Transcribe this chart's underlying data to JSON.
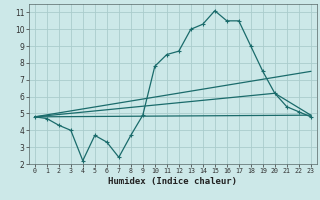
{
  "xlabel": "Humidex (Indice chaleur)",
  "background_color": "#cce8e8",
  "grid_color": "#aacccc",
  "line_color": "#1a6b6b",
  "xlim": [
    -0.5,
    23.5
  ],
  "ylim": [
    2,
    11.5
  ],
  "xticks": [
    0,
    1,
    2,
    3,
    4,
    5,
    6,
    7,
    8,
    9,
    10,
    11,
    12,
    13,
    14,
    15,
    16,
    17,
    18,
    19,
    20,
    21,
    22,
    23
  ],
  "yticks": [
    2,
    3,
    4,
    5,
    6,
    7,
    8,
    9,
    10,
    11
  ],
  "line1_x": [
    0,
    1,
    2,
    3,
    4,
    5,
    6,
    7,
    8,
    9,
    10,
    11,
    12,
    13,
    14,
    15,
    16,
    17,
    18,
    19,
    20,
    21,
    22,
    23
  ],
  "line1_y": [
    4.8,
    4.7,
    4.3,
    4.0,
    2.2,
    3.7,
    3.3,
    2.4,
    3.7,
    4.9,
    7.8,
    8.5,
    8.7,
    10.0,
    10.3,
    11.1,
    10.5,
    10.5,
    9.0,
    7.5,
    6.2,
    5.4,
    5.1,
    4.8
  ],
  "line2_x": [
    0,
    23
  ],
  "line2_y": [
    4.8,
    7.5
  ],
  "line3_x": [
    0,
    20,
    23
  ],
  "line3_y": [
    4.8,
    6.2,
    4.9
  ],
  "line4_x": [
    0,
    23
  ],
  "line4_y": [
    4.8,
    4.9
  ]
}
